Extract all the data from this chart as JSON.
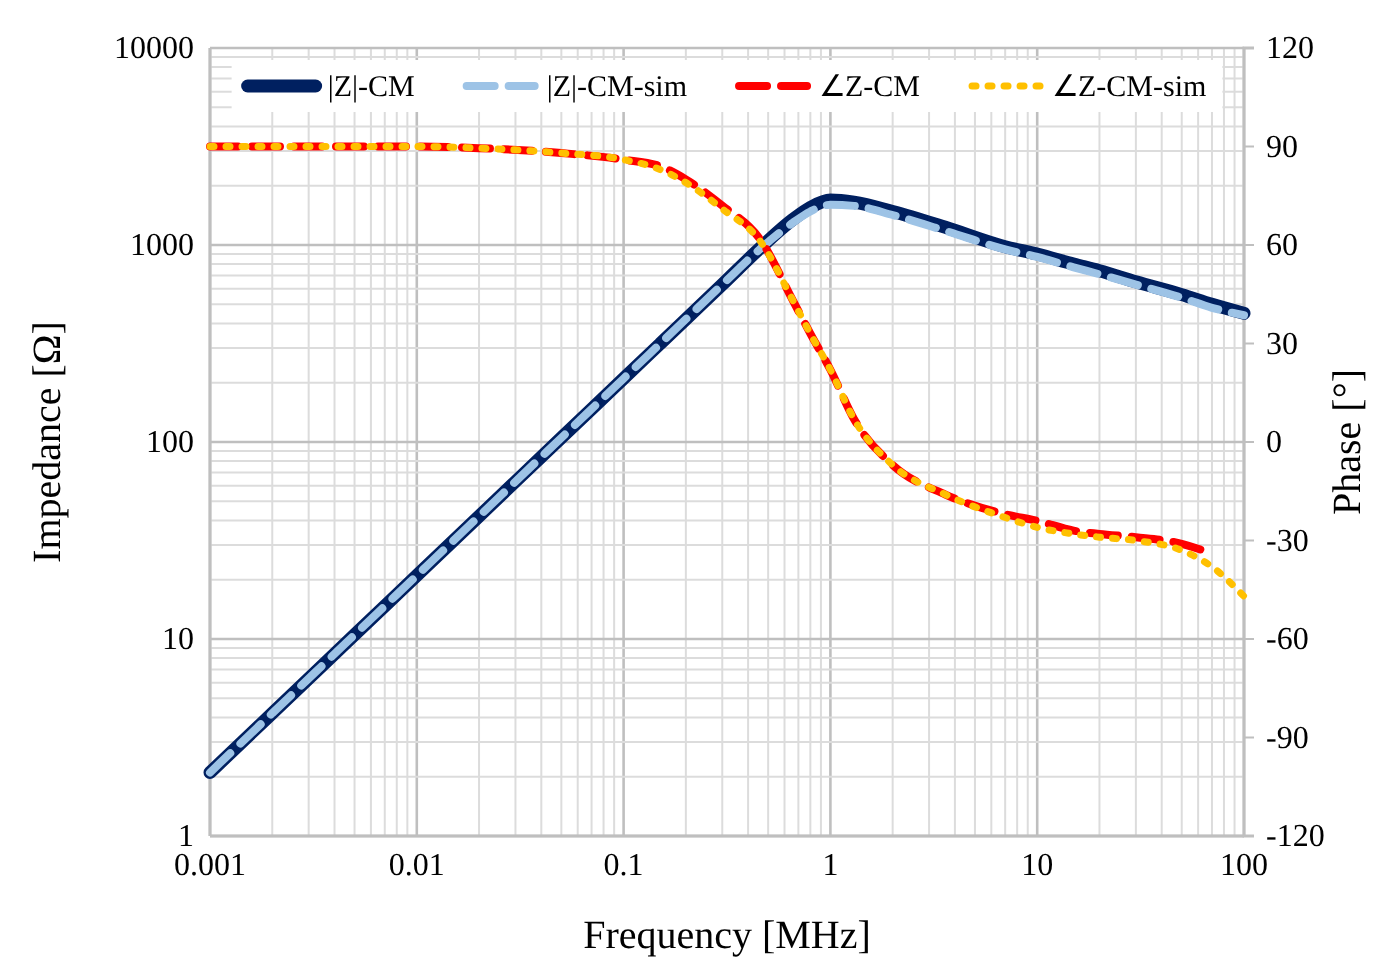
{
  "chart_data": {
    "type": "line",
    "xlabel": "Frequency [MHz]",
    "ylabel": "Impedance [Ω]",
    "y2label": "Phase [°]",
    "log": "xy",
    "grid": true,
    "legend": "top",
    "x": [
      0.001,
      0.002,
      0.005,
      0.01,
      0.02,
      0.05,
      0.1,
      0.15,
      0.2,
      0.3,
      0.46,
      0.66,
      0.8,
      1,
      1.3,
      2,
      3.6,
      7,
      10,
      15,
      20,
      30,
      50,
      70,
      100
    ],
    "xlim": [
      0.001,
      100
    ],
    "xticks": [
      0.001,
      0.01,
      0.1,
      1,
      10,
      100
    ],
    "ylim": [
      1,
      10000
    ],
    "yticks": [
      1,
      10,
      100,
      1000,
      10000
    ],
    "y2lim": [
      -120,
      120
    ],
    "y2ticks": [
      -120,
      -90,
      -60,
      -30,
      0,
      30,
      60,
      90,
      120
    ],
    "series": [
      {
        "name": "|Z|-CM",
        "color": "#002060",
        "line_style": "solid",
        "values": [
          2.1,
          4.2,
          10.5,
          21,
          42,
          105,
          210,
          315,
          420,
          630,
          970,
          1350,
          1550,
          1690,
          1650,
          1480,
          1230,
          980,
          900,
          800,
          740,
          650,
          560,
          500,
          450
        ]
      },
      {
        "name": "|Z|-CM-sim",
        "color": "#9dc3e6",
        "line_style": "dashed",
        "values": [
          2.1,
          4.2,
          10.5,
          21,
          42,
          105,
          210,
          315,
          420,
          630,
          960,
          1300,
          1480,
          1600,
          1580,
          1420,
          1180,
          950,
          870,
          770,
          710,
          630,
          540,
          480,
          440
        ]
      },
      {
        "name": "∠Z-CM",
        "color": "#ff0000",
        "line_style": "dashed",
        "axis": "y2",
        "values": [
          90,
          90,
          90,
          90,
          89.5,
          88,
          86,
          84,
          80,
          72,
          61.5,
          43,
          33,
          22,
          7,
          -7,
          -16,
          -22,
          -24,
          -27,
          -28,
          -29,
          -31,
          -34,
          null
        ]
      },
      {
        "name": "∠Z-CM-sim",
        "color": "#ffc000",
        "line_style": "dotted",
        "axis": "y2",
        "values": [
          90,
          90,
          90,
          90,
          89.5,
          88,
          86,
          83,
          79,
          71,
          61,
          43,
          33,
          22,
          7,
          -7,
          -16,
          -23,
          -26,
          -28,
          -29,
          -30,
          -33,
          -38,
          -47
        ]
      }
    ]
  }
}
